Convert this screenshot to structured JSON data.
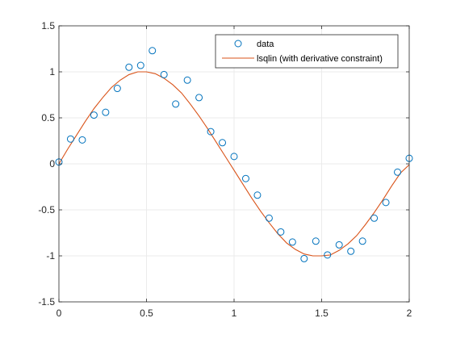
{
  "chart_data": {
    "type": "line",
    "title": "",
    "xlabel": "",
    "ylabel": "",
    "xlim": [
      0,
      2
    ],
    "ylim": [
      -1.5,
      1.5
    ],
    "xticks": [
      0,
      0.5,
      1,
      1.5,
      2
    ],
    "xtick_labels": [
      "0",
      "0.5",
      "1",
      "1.5",
      "2"
    ],
    "yticks": [
      -1.5,
      -1,
      -0.5,
      0,
      0.5,
      1,
      1.5
    ],
    "ytick_labels": [
      "-1.5",
      "-1",
      "-0.5",
      "0",
      "0.5",
      "1",
      "1.5"
    ],
    "grid": true,
    "legend_position": "top-right",
    "series": [
      {
        "name": "data",
        "type": "scatter",
        "marker": "circle",
        "color": "#0072BD",
        "x": [
          0,
          0.0667,
          0.1333,
          0.2,
          0.2667,
          0.3333,
          0.4,
          0.4667,
          0.5333,
          0.6,
          0.6667,
          0.7333,
          0.8,
          0.8667,
          0.9333,
          1.0,
          1.0667,
          1.1333,
          1.2,
          1.2667,
          1.3333,
          1.4,
          1.4667,
          1.5333,
          1.6,
          1.6667,
          1.7333,
          1.8,
          1.8667,
          1.9333,
          2.0
        ],
        "y": [
          0.02,
          0.27,
          0.26,
          0.53,
          0.56,
          0.82,
          1.05,
          1.07,
          1.23,
          0.97,
          0.65,
          0.91,
          0.72,
          0.35,
          0.23,
          0.08,
          -0.16,
          -0.34,
          -0.59,
          -0.74,
          -0.85,
          -1.03,
          -0.84,
          -0.99,
          -0.88,
          -0.95,
          -0.84,
          -0.59,
          -0.42,
          -0.09,
          0.06
        ]
      },
      {
        "name": "lsqlin (with derivative constraint)",
        "type": "line",
        "color": "#D95319",
        "x": [
          0,
          0.05,
          0.1,
          0.15,
          0.2,
          0.25,
          0.3,
          0.35,
          0.4,
          0.45,
          0.5,
          0.55,
          0.6,
          0.65,
          0.7,
          0.75,
          0.8,
          0.85,
          0.9,
          0.95,
          1.0,
          1.05,
          1.1,
          1.15,
          1.2,
          1.25,
          1.3,
          1.35,
          1.4,
          1.45,
          1.5,
          1.55,
          1.6,
          1.65,
          1.7,
          1.75,
          1.8,
          1.85,
          1.9,
          1.95,
          2.0
        ],
        "y": [
          0.0,
          0.16,
          0.31,
          0.46,
          0.6,
          0.72,
          0.83,
          0.91,
          0.97,
          1.0,
          1.0,
          0.98,
          0.93,
          0.86,
          0.77,
          0.65,
          0.52,
          0.38,
          0.23,
          0.08,
          -0.07,
          -0.22,
          -0.37,
          -0.51,
          -0.64,
          -0.76,
          -0.86,
          -0.93,
          -0.98,
          -1.0,
          -1.0,
          -0.99,
          -0.94,
          -0.87,
          -0.78,
          -0.66,
          -0.53,
          -0.39,
          -0.24,
          -0.1,
          -0.01
        ]
      }
    ]
  }
}
